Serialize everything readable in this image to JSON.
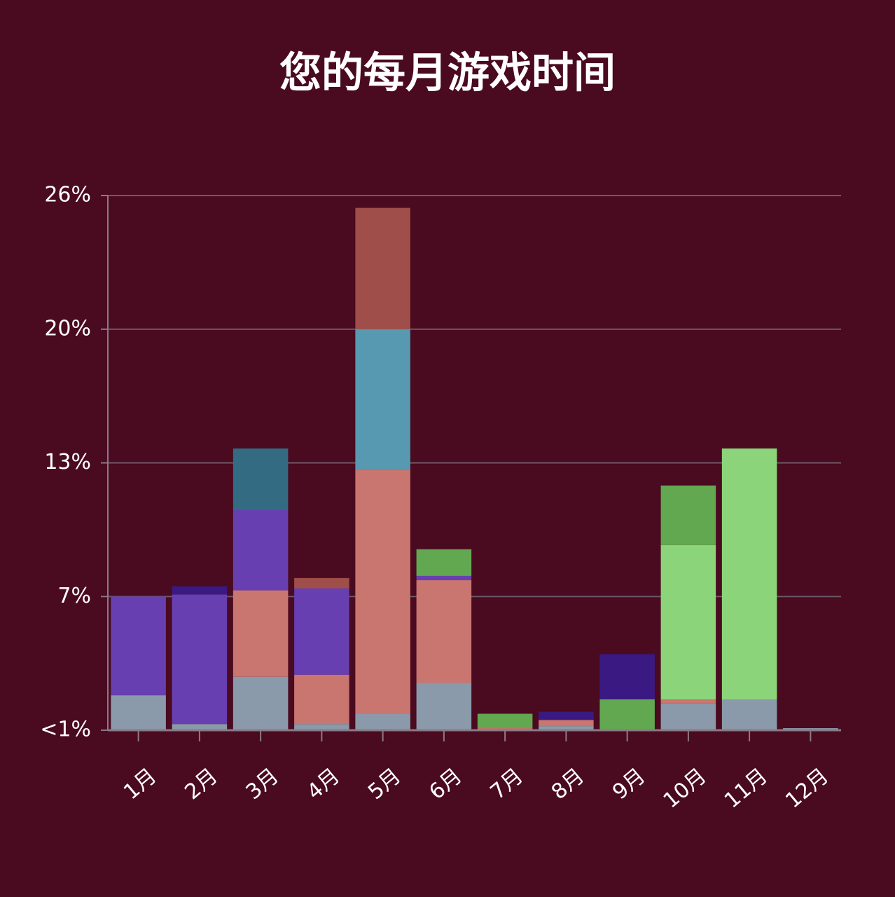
{
  "chart_data": {
    "type": "bar",
    "title": "您的每月游戏时间",
    "categories": [
      "1月",
      "2月",
      "3月",
      "4月",
      "5月",
      "6月",
      "7月",
      "8月",
      "9月",
      "10月",
      "11月",
      "12月"
    ],
    "series": [
      {
        "color": "#8a9aaa",
        "values": [
          1.7,
          0.3,
          2.6,
          0.3,
          0.8,
          2.3,
          0,
          0.2,
          0,
          1.3,
          1.5,
          0.1
        ]
      },
      {
        "color": "#c97570",
        "values": [
          0,
          0,
          4.2,
          2.4,
          11.9,
          5.0,
          0.1,
          0.3,
          0,
          0.2,
          0,
          0
        ]
      },
      {
        "color": "#673fb1",
        "values": [
          4.8,
          6.3,
          3.9,
          4.2,
          0,
          0.2,
          0,
          0,
          0,
          0,
          0,
          0
        ]
      },
      {
        "color": "#8cd47a",
        "values": [
          0,
          0,
          0,
          0,
          0,
          0,
          0,
          0,
          0,
          7.5,
          12.2,
          0
        ]
      },
      {
        "color": "#62a850",
        "values": [
          0,
          0,
          0,
          0,
          0,
          1.3,
          0.7,
          0,
          1.5,
          2.9,
          0,
          0
        ]
      },
      {
        "color": "#3a1a82",
        "values": [
          0,
          0.4,
          0,
          0,
          0,
          0,
          0,
          0.4,
          2.2,
          0,
          0,
          0
        ]
      },
      {
        "color": "#336b82",
        "values": [
          0,
          0,
          3.0,
          0,
          0,
          0,
          0,
          0,
          0,
          0,
          0,
          0
        ]
      },
      {
        "color": "#5799b1",
        "values": [
          0,
          0,
          0,
          0,
          6.8,
          0,
          0,
          0,
          0,
          0,
          0,
          0
        ]
      },
      {
        "color": "#a04e4a",
        "values": [
          0,
          0,
          0,
          0.5,
          5.9,
          0,
          0,
          0,
          0,
          0,
          0,
          0
        ]
      }
    ],
    "ylim": [
      0,
      26
    ],
    "yticks": [
      {
        "value": 0,
        "label": "<1%"
      },
      {
        "value": 6.5,
        "label": "7%"
      },
      {
        "value": 13,
        "label": "13%"
      },
      {
        "value": 19.5,
        "label": "20%"
      },
      {
        "value": 26,
        "label": "26%"
      }
    ],
    "grid": true,
    "stacked": true
  }
}
